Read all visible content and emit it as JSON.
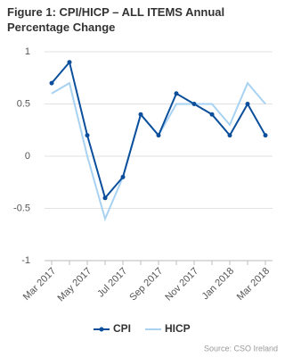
{
  "chart_data": {
    "type": "line",
    "title": "Figure 1: CPI/HICP – ALL ITEMS Annual Percentage Change",
    "categories": [
      "Mar 2017",
      null,
      "May 2017",
      null,
      "Jul 2017",
      null,
      "Sep 2017",
      null,
      "Nov 2017",
      null,
      "Jan 2018",
      null,
      "Mar 2018"
    ],
    "series": [
      {
        "name": "CPI",
        "color": "#0b4f9c",
        "markers": true,
        "values": [
          0.7,
          0.9,
          0.2,
          -0.4,
          -0.2,
          0.4,
          0.2,
          0.6,
          0.5,
          0.4,
          0.2,
          0.5,
          0.2
        ]
      },
      {
        "name": "HICP",
        "color": "#a8d2f2",
        "markers": false,
        "values": [
          0.6,
          0.7,
          0.0,
          -0.6,
          -0.2,
          0.4,
          0.2,
          0.5,
          0.5,
          0.5,
          0.3,
          0.7,
          0.5
        ]
      }
    ],
    "ylim": [
      -1,
      1
    ],
    "yticks": [
      -1,
      -0.5,
      0,
      0.5,
      1
    ],
    "grid": true,
    "legend": "bottom",
    "source": "Source: CSO Ireland"
  }
}
